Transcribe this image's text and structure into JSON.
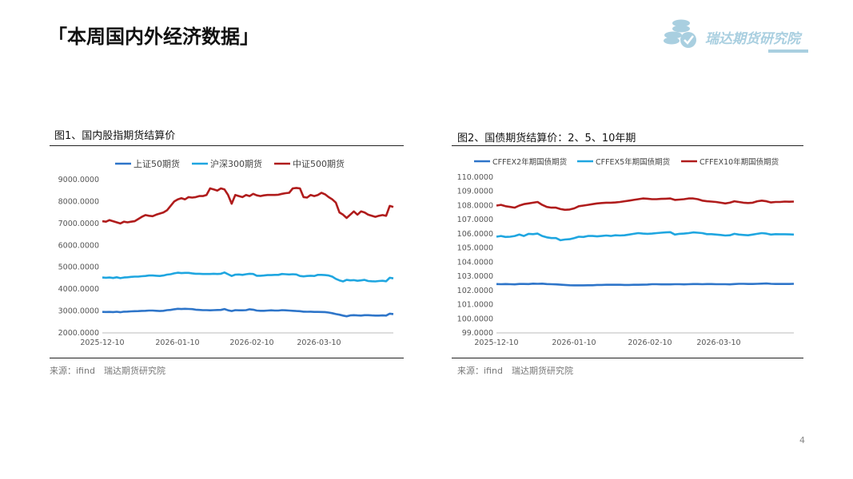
{
  "page": {
    "title": "「本周国内外经济数据」",
    "logo_text": "瑞达期货研究院",
    "page_number": "4"
  },
  "figure1": {
    "title": "图1、国内股指期货结算价",
    "source": "来源：ifind　瑞达期货研究院"
  },
  "figure2": {
    "title": "图2、国债期货结算价：2、5、10年期",
    "source": "来源：ifind　瑞达期货研究院"
  },
  "colors": {
    "dark_blue": "#2e75c9",
    "light_blue": "#1fa6e0",
    "dark_red": "#b01c1c",
    "logo": "#a9cfe0"
  },
  "chart_data": [
    {
      "type": "line",
      "title": "",
      "xlabel": "",
      "ylabel": "",
      "ylim": [
        2000,
        9000
      ],
      "yticks": [
        "9000.0000",
        "8000.0000",
        "7000.0000",
        "6000.0000",
        "5000.0000",
        "4000.0000",
        "3000.0000",
        "2000.0000"
      ],
      "xticks": [
        "2025-12-10",
        "2026-01-10",
        "2026-02-10",
        "2026-03-10"
      ],
      "legend_position": "top",
      "grid": false,
      "series": [
        {
          "name": "上证50期货",
          "color": "#2e75c9",
          "values": [
            2960,
            2955,
            2960,
            2950,
            2965,
            2945,
            2970,
            2975,
            2985,
            2990,
            2995,
            3005,
            3010,
            3020,
            3020,
            3010,
            3000,
            3010,
            3040,
            3050,
            3080,
            3100,
            3090,
            3100,
            3095,
            3085,
            3060,
            3050,
            3040,
            3040,
            3030,
            3040,
            3045,
            3050,
            3090,
            3030,
            3000,
            3040,
            3030,
            3030,
            3040,
            3080,
            3060,
            3020,
            3010,
            3010,
            3020,
            3030,
            3020,
            3020,
            3040,
            3030,
            3020,
            3010,
            3000,
            2990,
            2970,
            2965,
            2970,
            2960,
            2960,
            2955,
            2950,
            2930,
            2900,
            2860,
            2830,
            2790,
            2760,
            2800,
            2810,
            2800,
            2790,
            2810,
            2810,
            2800,
            2790,
            2790,
            2800,
            2790,
            2880,
            2860
          ]
        },
        {
          "name": "沪深300期货",
          "color": "#1fa6e0",
          "values": [
            4530,
            4520,
            4530,
            4510,
            4540,
            4500,
            4530,
            4540,
            4560,
            4570,
            4570,
            4590,
            4600,
            4620,
            4620,
            4610,
            4600,
            4620,
            4660,
            4680,
            4720,
            4750,
            4730,
            4740,
            4740,
            4720,
            4700,
            4700,
            4690,
            4690,
            4690,
            4700,
            4690,
            4700,
            4760,
            4680,
            4600,
            4660,
            4670,
            4650,
            4680,
            4700,
            4690,
            4610,
            4610,
            4620,
            4640,
            4640,
            4650,
            4650,
            4690,
            4680,
            4670,
            4680,
            4670,
            4600,
            4580,
            4600,
            4610,
            4600,
            4650,
            4650,
            4640,
            4620,
            4570,
            4470,
            4400,
            4350,
            4420,
            4400,
            4410,
            4380,
            4400,
            4420,
            4370,
            4360,
            4350,
            4370,
            4380,
            4360,
            4520,
            4490
          ]
        },
        {
          "name": "中证500期货",
          "color": "#b01c1c",
          "values": [
            7100,
            7080,
            7150,
            7100,
            7050,
            7000,
            7080,
            7050,
            7080,
            7100,
            7200,
            7300,
            7380,
            7350,
            7330,
            7400,
            7450,
            7500,
            7600,
            7800,
            8000,
            8100,
            8150,
            8100,
            8200,
            8180,
            8200,
            8250,
            8250,
            8300,
            8600,
            8550,
            8500,
            8600,
            8550,
            8300,
            7900,
            8300,
            8250,
            8200,
            8300,
            8250,
            8350,
            8280,
            8250,
            8280,
            8300,
            8300,
            8300,
            8310,
            8350,
            8380,
            8400,
            8600,
            8620,
            8600,
            8200,
            8180,
            8300,
            8250,
            8300,
            8400,
            8330,
            8200,
            8100,
            7950,
            7500,
            7400,
            7250,
            7400,
            7550,
            7400,
            7550,
            7500,
            7400,
            7350,
            7300,
            7350,
            7380,
            7350,
            7800,
            7750
          ]
        }
      ]
    },
    {
      "type": "line",
      "title": "",
      "xlabel": "",
      "ylabel": "",
      "ylim": [
        99,
        110
      ],
      "yticks": [
        "110.0000",
        "109.0000",
        "108.0000",
        "107.0000",
        "106.0000",
        "105.0000",
        "104.0000",
        "103.0000",
        "102.0000",
        "101.0000",
        "100.0000",
        "99.0000"
      ],
      "xticks": [
        "2025-12-10",
        "2026-01-10",
        "2026-02-10",
        "2026-03-10"
      ],
      "legend_position": "top",
      "grid": false,
      "series": [
        {
          "name": "CFFEX2年期国债期货",
          "color": "#2e75c9",
          "values": [
            102.45,
            102.44,
            102.45,
            102.44,
            102.43,
            102.46,
            102.46,
            102.45,
            102.48,
            102.47,
            102.48,
            102.45,
            102.44,
            102.43,
            102.41,
            102.39,
            102.37,
            102.36,
            102.36,
            102.36,
            102.37,
            102.37,
            102.39,
            102.39,
            102.4,
            102.4,
            102.4,
            102.4,
            102.39,
            102.39,
            102.4,
            102.4,
            102.41,
            102.42,
            102.44,
            102.44,
            102.43,
            102.43,
            102.43,
            102.44,
            102.44,
            102.43,
            102.44,
            102.45,
            102.45,
            102.44,
            102.45,
            102.45,
            102.44,
            102.44,
            102.44,
            102.43,
            102.45,
            102.47,
            102.47,
            102.46,
            102.46,
            102.47,
            102.48,
            102.49,
            102.47,
            102.46,
            102.46,
            102.46,
            102.46,
            102.47
          ]
        },
        {
          "name": "CFFEX5年期国债期货",
          "color": "#1fa6e0",
          "values": [
            105.8,
            105.85,
            105.78,
            105.8,
            105.85,
            105.95,
            105.85,
            106.0,
            105.98,
            106.02,
            105.85,
            105.75,
            105.7,
            105.7,
            105.55,
            105.6,
            105.62,
            105.7,
            105.8,
            105.78,
            105.85,
            105.85,
            105.82,
            105.85,
            105.88,
            105.85,
            105.9,
            105.88,
            105.9,
            105.95,
            106.0,
            106.05,
            106.02,
            106.0,
            106.02,
            106.05,
            106.08,
            106.1,
            106.12,
            105.95,
            106.0,
            106.02,
            106.05,
            106.1,
            106.08,
            106.05,
            105.98,
            105.98,
            105.95,
            105.92,
            105.88,
            105.9,
            106.0,
            105.95,
            105.92,
            105.9,
            105.95,
            106.0,
            106.05,
            106.02,
            105.95,
            105.98,
            105.97,
            105.97,
            105.96,
            105.95
          ]
        },
        {
          "name": "CFFEX10年期国债期货",
          "color": "#b01c1c",
          "values": [
            108.0,
            108.05,
            107.95,
            107.9,
            107.85,
            108.0,
            108.1,
            108.15,
            108.2,
            108.25,
            108.05,
            107.9,
            107.85,
            107.85,
            107.75,
            107.7,
            107.72,
            107.8,
            107.95,
            108.0,
            108.05,
            108.1,
            108.15,
            108.18,
            108.2,
            108.2,
            108.22,
            108.25,
            108.3,
            108.35,
            108.4,
            108.45,
            108.5,
            108.48,
            108.45,
            108.45,
            108.47,
            108.48,
            108.5,
            108.4,
            108.42,
            108.45,
            108.5,
            108.5,
            108.45,
            108.35,
            108.3,
            108.28,
            108.25,
            108.2,
            108.15,
            108.2,
            108.3,
            108.25,
            108.2,
            108.18,
            108.2,
            108.3,
            108.35,
            108.3,
            108.22,
            108.25,
            108.25,
            108.28,
            108.27,
            108.28
          ]
        }
      ]
    }
  ]
}
